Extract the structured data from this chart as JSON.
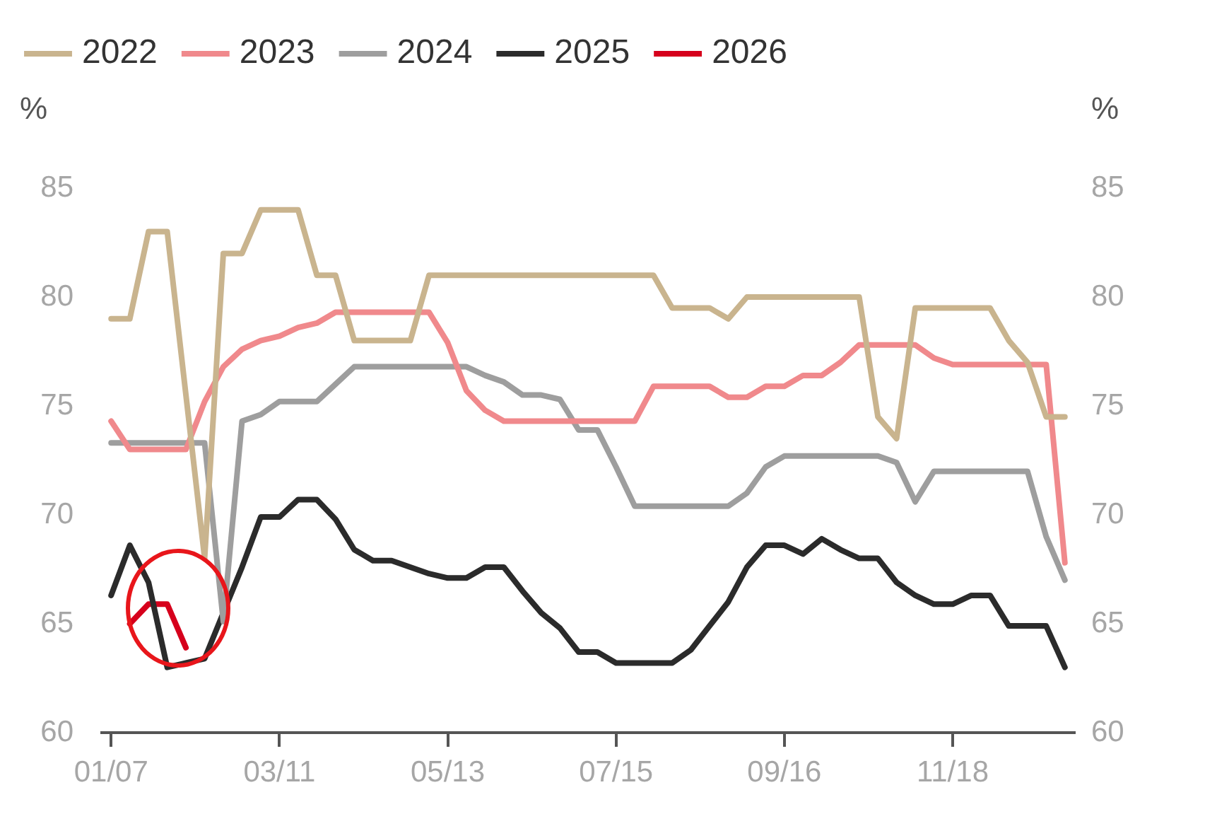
{
  "chart_data": {
    "type": "line",
    "ylabel": "%",
    "y2label": "%",
    "legend": "top",
    "grid": false,
    "marker": "none",
    "line_style": "solid",
    "categories": [
      "01/07",
      null,
      null,
      null,
      null,
      null,
      null,
      null,
      null,
      "03/11",
      null,
      null,
      null,
      null,
      null,
      null,
      null,
      null,
      "05/13",
      null,
      null,
      null,
      null,
      null,
      null,
      null,
      null,
      "07/15",
      null,
      null,
      null,
      null,
      null,
      null,
      null,
      null,
      "09/16",
      null,
      null,
      null,
      null,
      null,
      null,
      null,
      null,
      "11/18",
      null,
      null,
      null,
      null,
      null,
      null
    ],
    "ylim": [
      60,
      85
    ],
    "yticks": [
      60,
      65,
      70,
      75,
      80,
      85
    ],
    "y2lim": [
      60,
      85
    ],
    "y2ticks": [
      60,
      65,
      70,
      75,
      80,
      85
    ],
    "series": [
      {
        "name": "2022",
        "color": "#c9b48e",
        "values": [
          79,
          79,
          83,
          83,
          75.5,
          68,
          82,
          82,
          84,
          84,
          84,
          81,
          81,
          78,
          78,
          78,
          78,
          81,
          81,
          81,
          81,
          81,
          81,
          81,
          81,
          81,
          81,
          81,
          81,
          81,
          79.5,
          79.5,
          79.5,
          79,
          80,
          80,
          80,
          80,
          80,
          80,
          80,
          74.5,
          73.5,
          79.5,
          79.5,
          79.5,
          79.5,
          79.5,
          78,
          77,
          74.5,
          74.5
        ]
      },
      {
        "name": "2023",
        "color": "#f0898c",
        "values": [
          74.3,
          73,
          73,
          73,
          73,
          75.2,
          76.8,
          77.6,
          78,
          78.2,
          78.6,
          78.8,
          79.3,
          79.3,
          79.3,
          79.3,
          79.3,
          79.3,
          77.9,
          75.7,
          74.8,
          74.3,
          74.3,
          74.3,
          74.3,
          74.3,
          74.3,
          74.3,
          74.3,
          75.9,
          75.9,
          75.9,
          75.9,
          75.4,
          75.4,
          75.9,
          75.9,
          76.4,
          76.4,
          77,
          77.8,
          77.8,
          77.8,
          77.8,
          77.2,
          76.9,
          76.9,
          76.9,
          76.9,
          76.9,
          76.9,
          67.8
        ]
      },
      {
        "name": "2024",
        "color": "#9e9e9e",
        "values": [
          73.3,
          73.3,
          73.3,
          73.3,
          73.3,
          73.3,
          65.1,
          74.3,
          74.6,
          75.2,
          75.2,
          75.2,
          76,
          76.8,
          76.8,
          76.8,
          76.8,
          76.8,
          76.8,
          76.8,
          76.4,
          76.1,
          75.5,
          75.5,
          75.3,
          73.9,
          73.9,
          72.2,
          70.4,
          70.4,
          70.4,
          70.4,
          70.4,
          70.4,
          71,
          72.2,
          72.7,
          72.7,
          72.7,
          72.7,
          72.7,
          72.7,
          72.4,
          70.6,
          72,
          72,
          72,
          72,
          72,
          72,
          69,
          67
        ]
      },
      {
        "name": "2025",
        "color": "#2b2b2b",
        "values": [
          66.3,
          68.6,
          66.9,
          63,
          63.2,
          63.4,
          65.5,
          67.6,
          69.9,
          69.9,
          70.7,
          70.7,
          69.8,
          68.4,
          67.9,
          67.9,
          67.6,
          67.3,
          67.1,
          67.1,
          67.6,
          67.6,
          66.5,
          65.5,
          64.8,
          63.7,
          63.7,
          63.2,
          63.2,
          63.2,
          63.2,
          63.8,
          64.9,
          66,
          67.6,
          68.6,
          68.6,
          68.2,
          68.9,
          68.4,
          68,
          68,
          66.9,
          66.3,
          65.9,
          65.9,
          66.3,
          66.3,
          64.9,
          64.9,
          64.9,
          63
        ]
      },
      {
        "name": "2026",
        "color": "#d6001c",
        "values": [
          null,
          65,
          65.9,
          65.9,
          63.9,
          null,
          null,
          null,
          null,
          null,
          null,
          null,
          null,
          null,
          null,
          null,
          null,
          null,
          null,
          null,
          null,
          null,
          null,
          null,
          null,
          null,
          null,
          null,
          null,
          null,
          null,
          null,
          null,
          null,
          null,
          null,
          null,
          null,
          null,
          null,
          null,
          null,
          null,
          null,
          null,
          null,
          null,
          null,
          null,
          null,
          null,
          null
        ]
      }
    ]
  }
}
